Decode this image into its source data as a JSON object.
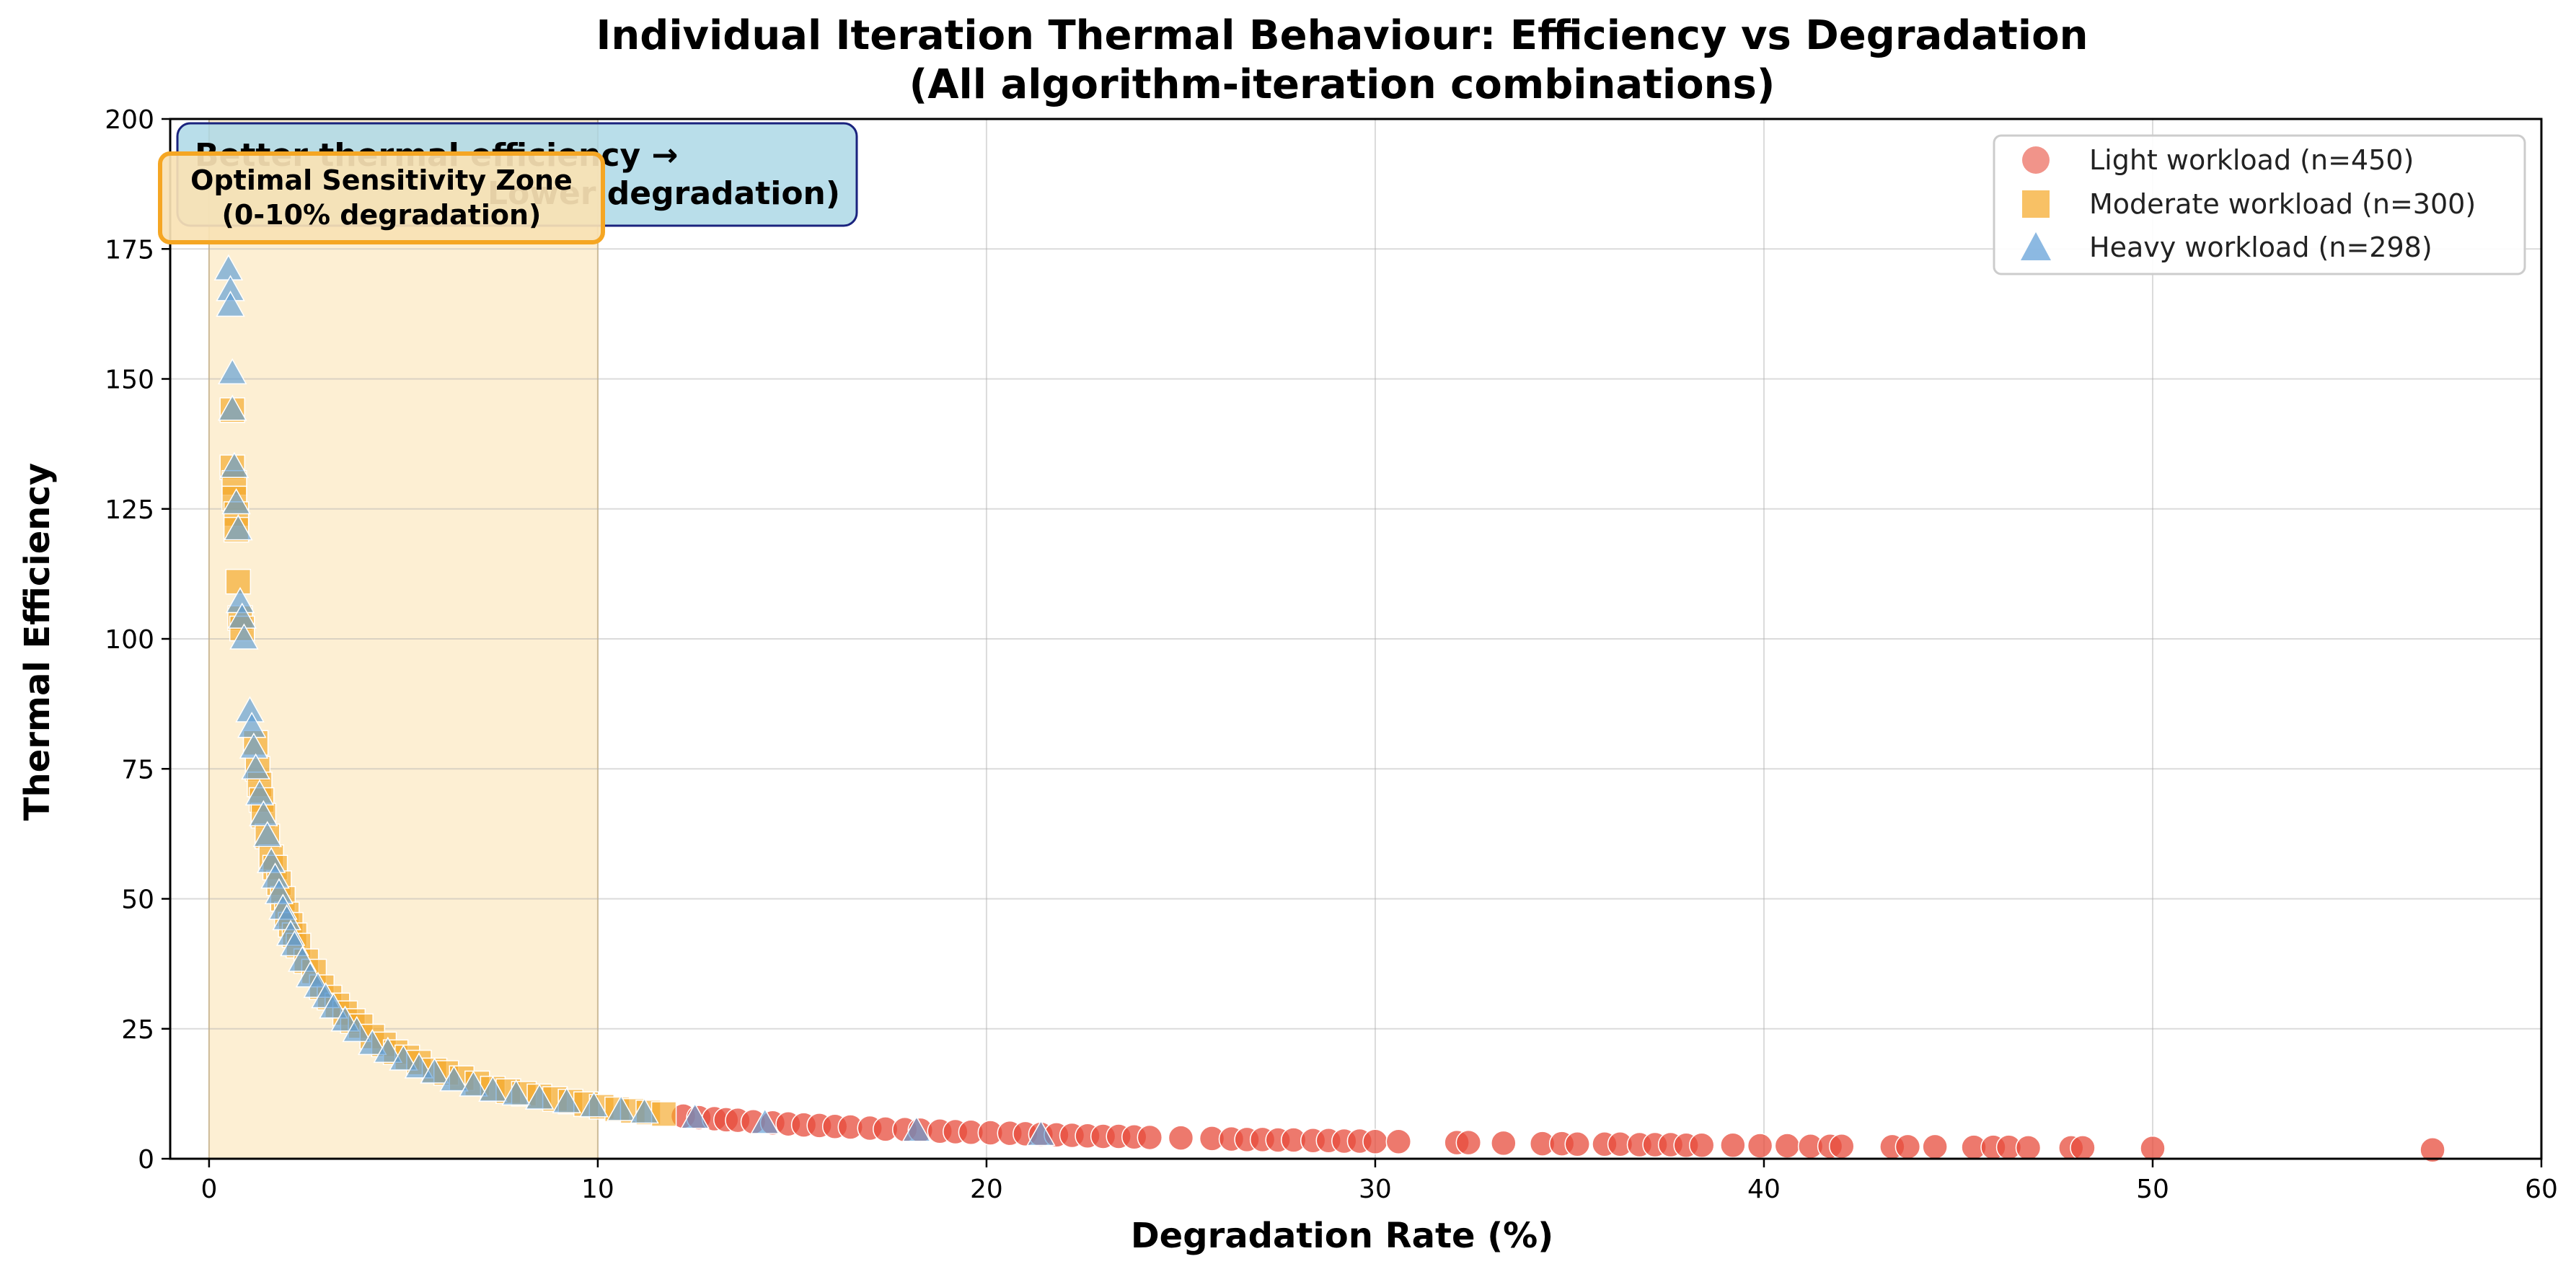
{
  "chart_data": {
    "type": "scatter",
    "title_line1": "Individual Iteration Thermal Behaviour: Efficiency vs Degradation",
    "title_line2": "(All algorithm-iteration combinations)",
    "xlabel": "Degradation Rate (%)",
    "ylabel": "Thermal Efficiency",
    "xlim": [
      -1,
      60
    ],
    "ylim": [
      0,
      200
    ],
    "xticks": [
      0,
      10,
      20,
      30,
      40,
      50,
      60
    ],
    "yticks": [
      0,
      25,
      50,
      75,
      100,
      125,
      150,
      175,
      200
    ],
    "grid": true,
    "legend_position": "top-right",
    "relationship": "Thermal Efficiency ≈ 100 / Degradation Rate",
    "shaded_zone": {
      "x_range": [
        0,
        10
      ],
      "color": "#fdebc8",
      "label_line1": "Optimal Sensitivity Zone",
      "label_line2": "(0-10% degradation)"
    },
    "annotation_box": {
      "line1": "Better thermal efficiency →",
      "line2": "Lower degradation)",
      "color": "#add8e6"
    },
    "series": [
      {
        "name": "Light workload (n=450)",
        "marker": "circle",
        "color": "#e74c3c",
        "x": [
          12.2,
          12.6,
          13.0,
          13.3,
          13.6,
          14.0,
          14.5,
          14.9,
          15.3,
          15.7,
          16.1,
          16.5,
          17.0,
          17.4,
          17.9,
          18.3,
          18.8,
          19.2,
          19.6,
          20.1,
          20.6,
          21.0,
          21.4,
          21.8,
          22.2,
          22.6,
          23.0,
          23.4,
          23.8,
          24.2,
          25.0,
          25.8,
          26.3,
          26.7,
          27.1,
          27.5,
          27.9,
          28.4,
          28.8,
          29.2,
          29.6,
          30.0,
          30.6,
          32.1,
          32.4,
          33.3,
          34.3,
          34.8,
          35.2,
          35.9,
          36.3,
          36.8,
          37.2,
          37.6,
          38.0,
          38.4,
          39.2,
          39.9,
          40.6,
          41.2,
          41.7,
          42.0,
          43.3,
          43.7,
          44.4,
          45.4,
          45.9,
          46.3,
          46.8,
          47.9,
          48.2,
          50.0,
          57.2
        ],
        "y": [
          8.2,
          7.9,
          7.7,
          7.5,
          7.4,
          7.1,
          6.9,
          6.7,
          6.5,
          6.4,
          6.2,
          6.1,
          5.9,
          5.7,
          5.6,
          5.5,
          5.3,
          5.2,
          5.1,
          5.0,
          4.9,
          4.8,
          4.7,
          4.6,
          4.5,
          4.4,
          4.3,
          4.3,
          4.2,
          4.1,
          4.0,
          3.9,
          3.8,
          3.7,
          3.7,
          3.6,
          3.6,
          3.5,
          3.5,
          3.4,
          3.4,
          3.3,
          3.3,
          3.1,
          3.1,
          3.0,
          2.9,
          2.9,
          2.8,
          2.8,
          2.8,
          2.7,
          2.7,
          2.7,
          2.6,
          2.6,
          2.6,
          2.5,
          2.5,
          2.4,
          2.4,
          2.4,
          2.3,
          2.3,
          2.3,
          2.2,
          2.2,
          2.2,
          2.1,
          2.1,
          2.1,
          2.0,
          1.7
        ]
      },
      {
        "name": "Moderate workload (n=300)",
        "marker": "square",
        "color": "#f5a623",
        "x": [
          0.6,
          0.6,
          0.65,
          0.65,
          0.7,
          0.7,
          0.75,
          0.8,
          0.85,
          1.2,
          1.25,
          1.3,
          1.35,
          1.4,
          1.5,
          1.6,
          1.7,
          1.8,
          1.9,
          2.0,
          2.1,
          2.2,
          2.3,
          2.5,
          2.7,
          2.9,
          3.1,
          3.3,
          3.5,
          3.7,
          3.9,
          4.2,
          4.5,
          4.8,
          5.1,
          5.4,
          5.8,
          6.1,
          6.5,
          6.9,
          7.3,
          7.7,
          8.1,
          8.5,
          8.9,
          9.3,
          9.7,
          10.1,
          10.5,
          10.9,
          11.3,
          11.7
        ],
        "y": [
          144,
          133,
          130,
          127,
          124,
          121,
          111,
          104,
          102,
          80,
          75,
          72,
          69,
          66,
          62,
          58,
          56,
          53,
          50,
          47,
          45,
          43,
          41,
          38,
          36,
          33,
          31,
          29.5,
          28,
          26.5,
          25.5,
          23.5,
          22,
          20.5,
          19.5,
          18.5,
          17,
          16.5,
          15.5,
          14.5,
          13.5,
          13,
          12.5,
          12,
          11.5,
          11,
          10.5,
          10,
          9.5,
          9.2,
          8.9,
          8.6
        ]
      },
      {
        "name": "Heavy workload (n=298)",
        "marker": "triangle",
        "color": "#5b9bd5",
        "x": [
          0.5,
          0.55,
          0.55,
          0.6,
          0.6,
          0.65,
          0.7,
          0.75,
          0.8,
          0.85,
          0.9,
          1.05,
          1.1,
          1.15,
          1.2,
          1.3,
          1.4,
          1.5,
          1.6,
          1.7,
          1.8,
          1.9,
          2.0,
          2.1,
          2.2,
          2.4,
          2.6,
          2.8,
          3.0,
          3.2,
          3.5,
          3.8,
          4.2,
          4.6,
          5.0,
          5.4,
          5.8,
          6.3,
          6.8,
          7.3,
          7.9,
          8.5,
          9.2,
          9.9,
          10.6,
          11.2,
          12.5,
          14.3,
          18.2,
          21.4
        ],
        "y": [
          171,
          167,
          164,
          151,
          144,
          133,
          126,
          121,
          107,
          104,
          100,
          86,
          83,
          79,
          75,
          70,
          66,
          62,
          57,
          54,
          51,
          48,
          46,
          43,
          41,
          38,
          35,
          33,
          31,
          29,
          26.5,
          24.5,
          22,
          20.5,
          19,
          17.5,
          16.5,
          15,
          14,
          13,
          12.3,
          11.5,
          10.8,
          10,
          9.3,
          8.8,
          7.8,
          6.8,
          5.3,
          4.5
        ]
      }
    ]
  }
}
